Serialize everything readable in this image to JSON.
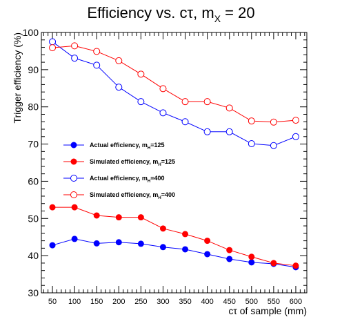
{
  "chart_data": {
    "type": "line",
    "title": {
      "main": "Efficiency vs. cτ, m",
      "sub": "X",
      "suffix": " = 20"
    },
    "xlabel": "cτ of sample (mm)",
    "ylabel": "Trigger efficiency (%)",
    "x": [
      50,
      100,
      150,
      200,
      250,
      300,
      350,
      400,
      450,
      500,
      550,
      600
    ],
    "xticks": [
      "50",
      "100",
      "150",
      "200",
      "250",
      "300",
      "350",
      "400",
      "450",
      "500",
      "550",
      "600"
    ],
    "yticks": [
      "30",
      "40",
      "50",
      "60",
      "70",
      "80",
      "90",
      "100"
    ],
    "ylim": [
      30,
      100
    ],
    "grid": false,
    "legend_position": "left-center",
    "series": [
      {
        "name": "Actual efficiency, m",
        "name_sub": "H",
        "name_suffix": "=125",
        "color": "#0000ff",
        "marker": "filled-circle",
        "values": [
          42.8,
          44.5,
          43.3,
          43.6,
          43.2,
          42.3,
          41.7,
          40.4,
          39.1,
          38.2,
          37.8,
          36.9
        ]
      },
      {
        "name": "Simulated efficiency, m",
        "name_sub": "H",
        "name_suffix": "=125",
        "color": "#ff0000",
        "marker": "filled-circle",
        "values": [
          53.0,
          53.0,
          50.8,
          50.3,
          50.3,
          47.3,
          45.8,
          44.0,
          41.5,
          39.7,
          38.0,
          37.3
        ]
      },
      {
        "name": "Actual efficiency, m",
        "name_sub": "H",
        "name_suffix": "=400",
        "color": "#0000ff",
        "marker": "open-circle",
        "values": [
          97.5,
          93.1,
          91.2,
          85.3,
          81.4,
          78.4,
          76.0,
          73.3,
          73.3,
          70.1,
          69.6,
          72.0
        ]
      },
      {
        "name": "Simulated efficiency, m",
        "name_sub": "H",
        "name_suffix": "=400",
        "color": "#ff0000",
        "marker": "open-circle",
        "values": [
          95.9,
          96.4,
          94.9,
          92.4,
          88.8,
          84.9,
          81.4,
          81.4,
          79.7,
          76.2,
          75.9,
          76.4
        ]
      }
    ]
  }
}
